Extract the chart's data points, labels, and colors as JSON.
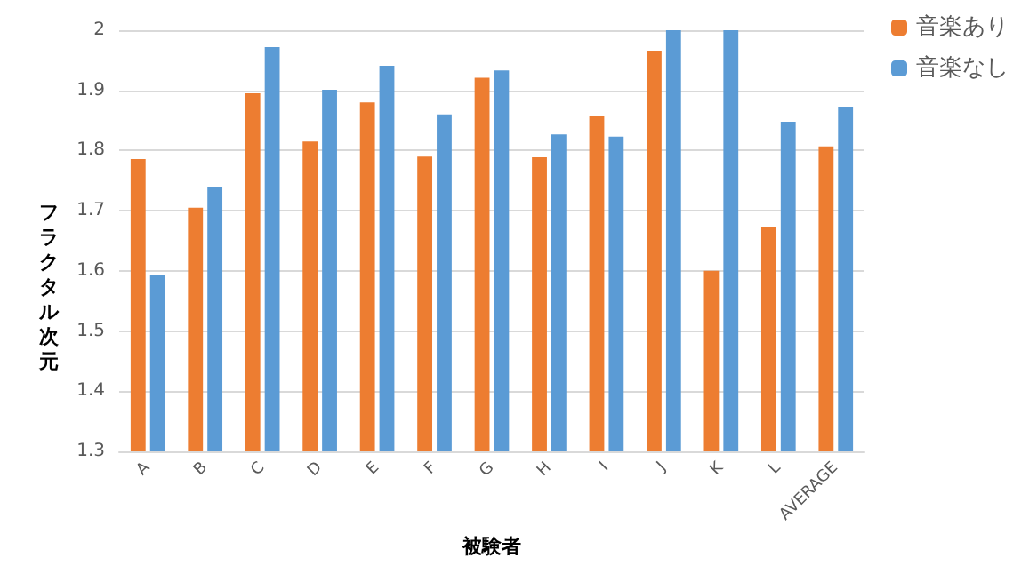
{
  "chart_data": {
    "type": "bar",
    "xlabel": "被験者",
    "ylabel": "フラクタル次元",
    "categories": [
      "A",
      "B",
      "C",
      "D",
      "E",
      "F",
      "G",
      "H",
      "I",
      "J",
      "K",
      "L",
      "AVERAGE"
    ],
    "series": [
      {
        "name": "音楽あり",
        "color": "#ed7d31",
        "values": [
          1.786,
          1.705,
          1.895,
          1.815,
          1.88,
          1.79,
          1.921,
          1.789,
          1.857,
          1.966,
          1.6,
          1.672,
          1.807
        ]
      },
      {
        "name": "音楽なし",
        "color": "#5b9bd5",
        "values": [
          1.593,
          1.739,
          1.972,
          1.901,
          1.941,
          1.86,
          1.933,
          1.827,
          1.823,
          2.0,
          2.0,
          1.848,
          1.873
        ]
      }
    ],
    "ylim": [
      1.3,
      2
    ],
    "yticks": [
      1.3,
      1.4,
      1.5,
      1.6,
      1.7,
      1.8,
      1.9,
      2
    ],
    "grid": "y",
    "legend": "top right"
  }
}
